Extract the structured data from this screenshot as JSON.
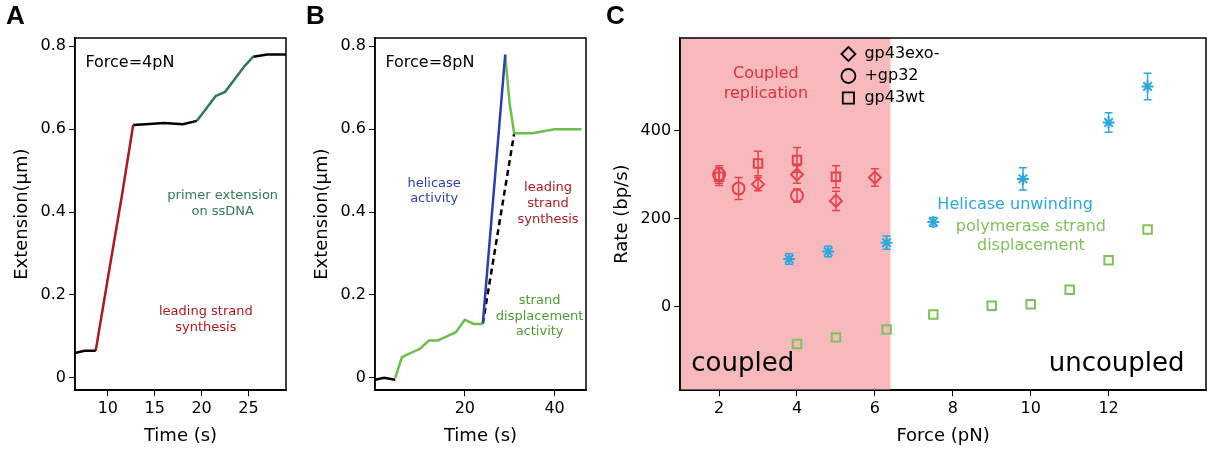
{
  "chart_data": [
    {
      "panel": "A",
      "type": "line",
      "x_label": "Time (s)",
      "y_label": "Extension(µm)",
      "xlim": [
        6.5,
        29
      ],
      "xticks": [
        10,
        15,
        20,
        25
      ],
      "ylim": [
        -0.03,
        0.82
      ],
      "yticks": [
        0,
        0.2,
        0.4,
        0.6,
        0.8
      ],
      "grid": false,
      "series": [
        {
          "color": "#000000",
          "line_style": "solid",
          "x": [
            6.5,
            7.5,
            8.7
          ],
          "values": [
            0.06,
            0.065,
            0.065
          ]
        },
        {
          "color": "#b01820",
          "line_style": "solid",
          "x": [
            8.7,
            10,
            11.5,
            12.7
          ],
          "values": [
            0.065,
            0.24,
            0.44,
            0.61
          ]
        },
        {
          "color": "#000000",
          "line_style": "solid",
          "x": [
            12.7,
            14,
            16,
            18,
            19.5
          ],
          "values": [
            0.61,
            0.612,
            0.615,
            0.612,
            0.62
          ]
        },
        {
          "color": "#2e7d4f",
          "line_style": "solid",
          "x": [
            19.5,
            20.5,
            21.5,
            22.5,
            23.5,
            24.5,
            25.5
          ],
          "values": [
            0.62,
            0.65,
            0.68,
            0.69,
            0.72,
            0.75,
            0.775
          ]
        },
        {
          "color": "#000000",
          "line_style": "solid",
          "x": [
            25.5,
            27,
            29
          ],
          "values": [
            0.775,
            0.78,
            0.78
          ]
        }
      ],
      "annotations": [
        {
          "text": "Force=4pN",
          "color": "#000000"
        },
        {
          "text": "leading strand synthesis",
          "color": "#b01820"
        },
        {
          "text": "primer extension on ssDNA",
          "color": "#2e7d4f"
        }
      ]
    },
    {
      "panel": "B",
      "type": "line",
      "x_label": "Time (s)",
      "y_label": "Extension(µm)",
      "xlim": [
        0,
        47
      ],
      "xticks": [
        20,
        40
      ],
      "ylim": [
        -0.03,
        0.82
      ],
      "yticks": [
        0,
        0.2,
        0.4,
        0.6,
        0.8
      ],
      "grid": false,
      "series": [
        {
          "color": "#000000",
          "line_style": "solid",
          "x": [
            0,
            2,
            4.5
          ],
          "values": [
            -0.005,
            0,
            -0.005
          ]
        },
        {
          "color": "#6cbf4a",
          "line_style": "solid",
          "x": [
            4.5,
            6,
            8,
            10,
            12,
            14,
            16,
            18,
            20,
            22,
            24
          ],
          "values": [
            0.0,
            0.05,
            0.06,
            0.07,
            0.09,
            0.09,
            0.1,
            0.11,
            0.14,
            0.13,
            0.13
          ]
        },
        {
          "color": "#2b3fb0",
          "line_style": "solid",
          "x": [
            24,
            25,
            26,
            27,
            28,
            29
          ],
          "values": [
            0.13,
            0.26,
            0.39,
            0.52,
            0.65,
            0.78
          ]
        },
        {
          "color": "#6cbf4a",
          "line_style": "solid",
          "x": [
            29,
            30,
            31,
            35,
            40,
            46
          ],
          "values": [
            0.78,
            0.66,
            0.59,
            0.59,
            0.6,
            0.6
          ]
        },
        {
          "color": "#000000",
          "line_style": "dashed",
          "x": [
            24,
            31
          ],
          "values": [
            0.13,
            0.59
          ]
        }
      ],
      "annotations": [
        {
          "text": "Force=8pN",
          "color": "#000000"
        },
        {
          "text": "helicase activity",
          "color": "#2b3fb0"
        },
        {
          "text": "leading strand synthesis",
          "color": "#b01820"
        },
        {
          "text": "strand displacement activity",
          "color": "#4f9a33"
        }
      ]
    },
    {
      "panel": "C",
      "type": "scatter",
      "x_label": "Force (pN)",
      "y_label": "Rate (bp/s)",
      "xlim": [
        1,
        14.5
      ],
      "xticks": [
        2,
        4,
        6,
        8,
        10,
        12
      ],
      "ylim": [
        -190,
        610
      ],
      "yticks": [
        0,
        200,
        400
      ],
      "grid": false,
      "legend": "top",
      "shaded_region": {
        "x": [
          1,
          6.4
        ],
        "color": "#f7b9bc",
        "label": "Coupled replication",
        "label_color": "#e0303c"
      },
      "series": [
        {
          "name": "gp43exo-",
          "color": "#e8424b",
          "marker": "diamond",
          "x": [
            3,
            4,
            5,
            6
          ],
          "values": [
            278,
            300,
            240,
            293
          ],
          "errors": [
            15,
            20,
            22,
            20
          ]
        },
        {
          "name": "+gp32",
          "color": "#e8424b",
          "marker": "circle",
          "x": [
            2,
            2.5,
            4
          ],
          "values": [
            300,
            268,
            252
          ],
          "errors": [
            20,
            25,
            15
          ]
        },
        {
          "name": "gp43wt",
          "color": "#e8424b",
          "marker": "square",
          "x": [
            2,
            3,
            4,
            5
          ],
          "values": [
            295,
            325,
            333,
            295
          ],
          "errors": [
            20,
            28,
            28,
            25
          ]
        },
        {
          "color": "#2aa9e0",
          "marker": "star",
          "x": [
            3.8,
            4.8,
            6.3,
            7.5,
            9.8,
            12,
            13
          ],
          "values": [
            108,
            125,
            145,
            192,
            290,
            418,
            500
          ],
          "errors": [
            12,
            12,
            15,
            10,
            25,
            22,
            30
          ]
        },
        {
          "color": "#7dc35b",
          "marker": "square",
          "x": [
            4,
            5,
            6.3,
            7.5,
            9,
            10,
            11,
            12,
            13
          ],
          "values": [
            -85,
            -70,
            -52,
            -18,
            2,
            5,
            38,
            105,
            175
          ]
        }
      ],
      "annotations": [
        {
          "text": "coupled",
          "color": "#000000"
        },
        {
          "text": "uncoupled",
          "color": "#000000"
        },
        {
          "text": "Helicase unwinding",
          "color": "#2aa9e0"
        },
        {
          "text": "polymerase strand displacement",
          "color": "#7dc35b"
        }
      ]
    }
  ]
}
